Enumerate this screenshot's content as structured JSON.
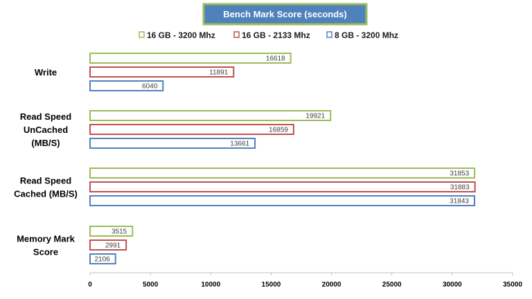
{
  "chart_data": {
    "type": "bar",
    "orientation": "horizontal",
    "title": "Bench Mark Score (seconds)",
    "categories": [
      [
        "Write"
      ],
      [
        "Read Speed",
        "UnCached",
        "(MB/S)"
      ],
      [
        "Read Speed",
        "Cached (MB/S)"
      ],
      [
        "Memory Mark",
        "Score"
      ]
    ],
    "series": [
      {
        "name": "16 GB - 3200 Mhz",
        "color": "#9bbb59",
        "values": [
          16618,
          19921,
          31853,
          3515
        ]
      },
      {
        "name": "16 GB - 2133 Mhz",
        "color": "#c0504d",
        "values": [
          11891,
          16859,
          31883,
          2991
        ]
      },
      {
        "name": "8 GB - 3200 Mhz",
        "color": "#4f81bd",
        "values": [
          6040,
          13661,
          31843,
          2106
        ]
      }
    ],
    "xlim": [
      0,
      35000
    ],
    "xticks": [
      0,
      5000,
      10000,
      15000,
      20000,
      25000,
      30000,
      35000
    ],
    "legend_position": "top",
    "grid": false,
    "colors": {
      "title_bg": "#4f81bd",
      "title_border": "#9bbb59",
      "axis": "#bfbfbf"
    }
  }
}
